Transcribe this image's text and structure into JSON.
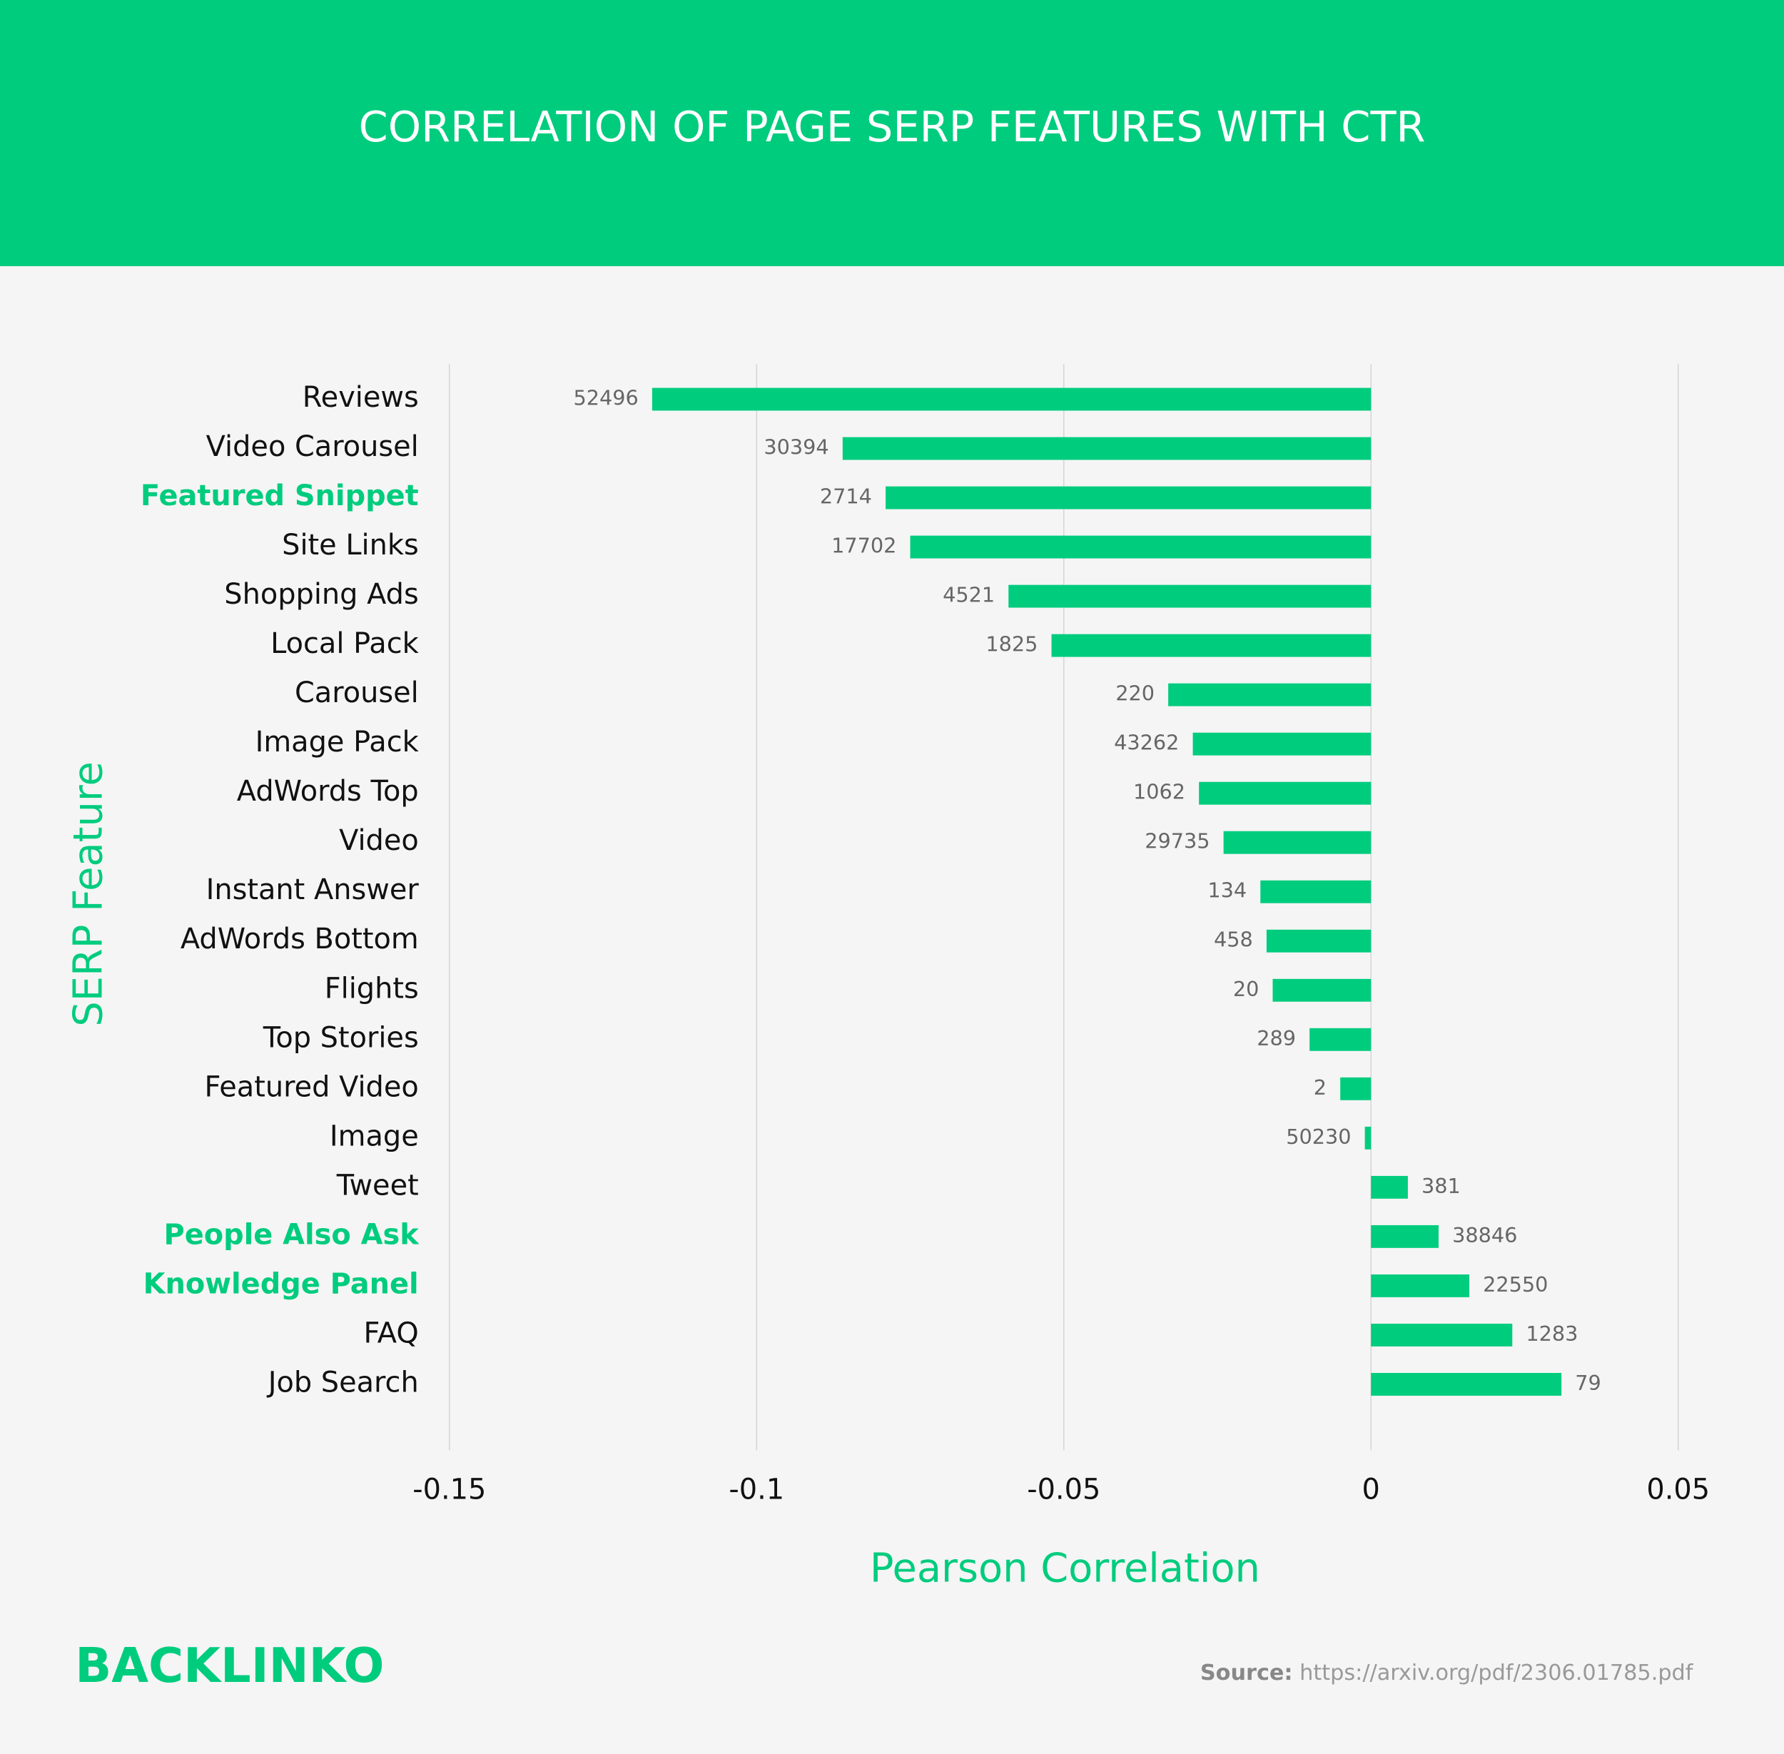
{
  "chart_data": {
    "type": "hbar",
    "title": "CORRELATION OF PAGE SERP FEATURES WITH CTR",
    "x_label": "Pearson Correlation",
    "y_label": "SERP Feature",
    "categories": [
      "Reviews",
      "Video Carousel",
      "Featured Snippet",
      "Site Links",
      "Shopping Ads",
      "Local Pack",
      "Carousel",
      "Image Pack",
      "AdWords Top",
      "Video",
      "Instant Answer",
      "AdWords Bottom",
      "Flights",
      "Top Stories",
      "Featured Video",
      "Image",
      "Tweet",
      "People Also Ask",
      "Knowledge Panel",
      "FAQ",
      "Job Search"
    ],
    "category_colors": [
      "#111111",
      "#111111",
      "#00cc7e",
      "#111111",
      "#111111",
      "#111111",
      "#111111",
      "#111111",
      "#111111",
      "#111111",
      "#111111",
      "#111111",
      "#111111",
      "#111111",
      "#111111",
      "#111111",
      "#111111",
      "#00cc7e",
      "#00cc7e",
      "#111111",
      "#111111"
    ],
    "values": [
      -0.117,
      -0.086,
      -0.079,
      -0.075,
      -0.059,
      -0.052,
      -0.033,
      -0.029,
      -0.028,
      -0.024,
      -0.018,
      -0.017,
      -0.016,
      -0.01,
      -0.005,
      -0.001,
      0.006,
      0.011,
      0.016,
      0.023,
      0.031
    ],
    "sample_sizes": [
      52496,
      30394,
      2714,
      17702,
      4521,
      1825,
      220,
      43262,
      1062,
      29735,
      134,
      458,
      20,
      289,
      2,
      50230,
      381,
      38846,
      22550,
      1283,
      79
    ],
    "color": "#00cc7e",
    "xlim": [
      -0.15,
      0.05
    ],
    "xticks": [
      -0.15,
      -0.1,
      -0.05,
      0,
      0.05
    ],
    "grid": true
  },
  "footer": {
    "logo": "BACKLINKO",
    "source_label": "Source:",
    "source_url": "https://arxiv.org/pdf/2306.01785.pdf"
  }
}
